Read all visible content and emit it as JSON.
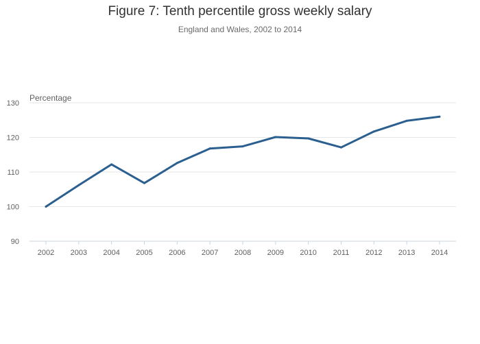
{
  "chart_data": {
    "type": "line",
    "title": "Figure 7: Tenth percentile gross weekly salary",
    "subtitle": "England and Wales, 2002 to 2014",
    "ylabel": "Percentage",
    "xlabel": "",
    "ylim": [
      90,
      130
    ],
    "yticks": [
      90,
      100,
      110,
      120,
      130
    ],
    "grid": true,
    "legend": "none",
    "x": [
      "2002",
      "2003",
      "2004",
      "2005",
      "2006",
      "2007",
      "2008",
      "2009",
      "2010",
      "2011",
      "2012",
      "2013",
      "2014"
    ],
    "series": [
      {
        "name": "",
        "color": "#2a5f8f",
        "values": [
          100.0,
          106.2,
          112.2,
          106.8,
          112.6,
          116.8,
          117.4,
          120.1,
          119.7,
          117.1,
          121.7,
          124.8,
          126.0
        ]
      }
    ]
  }
}
